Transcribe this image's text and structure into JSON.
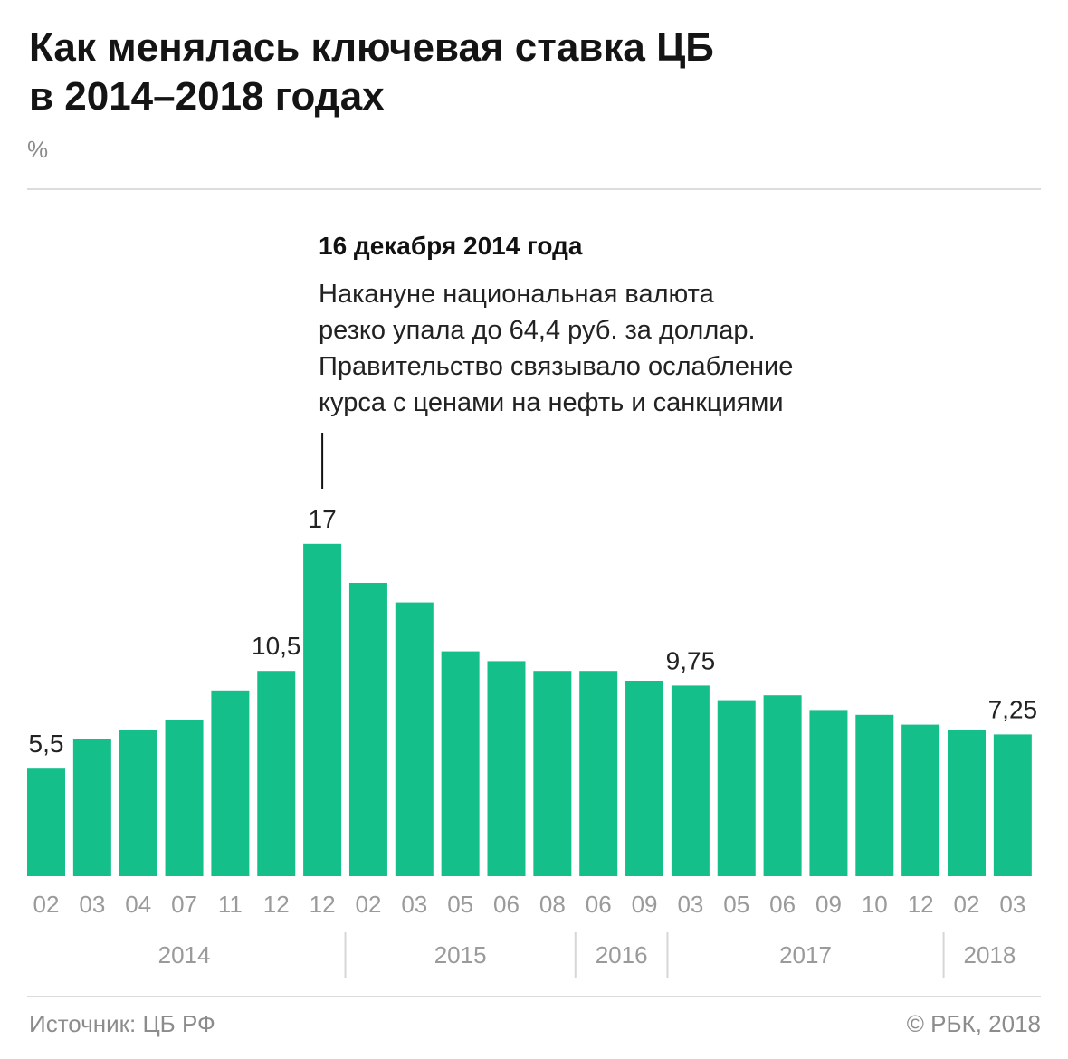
{
  "title": {
    "line1": "Как менялась ключевая ставка ЦБ",
    "line2": "в 2014–2018 годах"
  },
  "unit_label": "%",
  "annotation": {
    "heading": "16 декабря 2014 года",
    "lines": [
      "Накануне национальная валюта",
      "резко упала до 64,4 руб. за доллар.",
      "Правительство связывало ослабление",
      "курса с ценами на нефть и санкциями"
    ]
  },
  "chart_data": {
    "type": "bar",
    "title": "Как менялась ключевая ставка ЦБ в 2014–2018 годах",
    "ylabel": "%",
    "ylim": [
      0,
      17
    ],
    "bar_color": "#14bf8a",
    "categories": [
      "02",
      "03",
      "04",
      "07",
      "11",
      "12",
      "12",
      "02",
      "03",
      "05",
      "06",
      "08",
      "06",
      "09",
      "03",
      "05",
      "06",
      "09",
      "10",
      "12",
      "02",
      "03"
    ],
    "values": [
      5.5,
      7,
      7.5,
      8,
      9.5,
      10.5,
      17,
      15,
      14,
      11.5,
      11,
      10.5,
      10.5,
      10,
      9.75,
      9,
      9.25,
      8.5,
      8.25,
      7.75,
      7.5,
      7.25
    ],
    "data_labels": [
      {
        "index": 0,
        "text": "5,5"
      },
      {
        "index": 5,
        "text": "10,5"
      },
      {
        "index": 6,
        "text": "17"
      },
      {
        "index": 14,
        "text": "9,75"
      },
      {
        "index": 21,
        "text": "7,25"
      }
    ],
    "year_groups": [
      {
        "label": "2014",
        "start": 0,
        "end": 6
      },
      {
        "label": "2015",
        "start": 7,
        "end": 11
      },
      {
        "label": "2016",
        "start": 12,
        "end": 13
      },
      {
        "label": "2017",
        "start": 14,
        "end": 19
      },
      {
        "label": "2018",
        "start": 20,
        "end": 21
      }
    ]
  },
  "footer": {
    "source": "Источник: ЦБ РФ",
    "copyright": "© РБК, 2018"
  }
}
